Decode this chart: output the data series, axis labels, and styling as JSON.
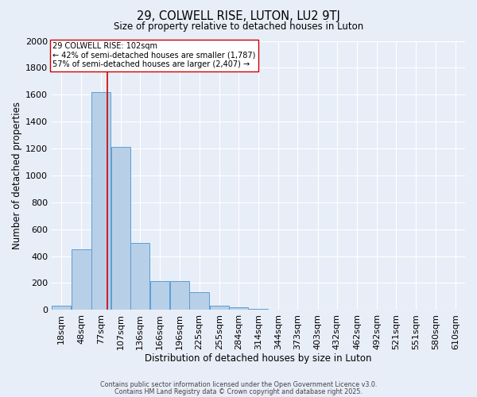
{
  "title1": "29, COLWELL RISE, LUTON, LU2 9TJ",
  "title2": "Size of property relative to detached houses in Luton",
  "xlabel": "Distribution of detached houses by size in Luton",
  "ylabel": "Number of detached properties",
  "bin_labels": [
    "18sqm",
    "48sqm",
    "77sqm",
    "107sqm",
    "136sqm",
    "166sqm",
    "196sqm",
    "225sqm",
    "255sqm",
    "284sqm",
    "314sqm",
    "344sqm",
    "373sqm",
    "403sqm",
    "432sqm",
    "462sqm",
    "492sqm",
    "521sqm",
    "551sqm",
    "580sqm",
    "610sqm"
  ],
  "bin_starts": [
    18,
    48,
    77,
    107,
    136,
    166,
    196,
    225,
    255,
    284,
    314,
    344,
    373,
    403,
    432,
    462,
    492,
    521,
    551,
    580,
    610
  ],
  "bin_width": 29,
  "bar_heights": [
    30,
    450,
    1620,
    1210,
    500,
    215,
    215,
    130,
    30,
    20,
    10,
    0,
    0,
    0,
    0,
    0,
    0,
    0,
    0,
    0,
    0
  ],
  "bar_color": "#b8cfe8",
  "bar_edge_color": "#5a9fd4",
  "bg_color": "#e8eef8",
  "grid_color": "#ffffff",
  "vline_x": 102,
  "vline_color": "#cc0000",
  "annotation_line1": "29 COLWELL RISE: 102sqm",
  "annotation_line2": "← 42% of semi-detached houses are smaller (1,787)",
  "annotation_line3": "57% of semi-detached houses are larger (2,407) →",
  "annotation_box_color": "#ffffff",
  "annotation_box_edge": "#cc0000",
  "ylim": [
    0,
    2000
  ],
  "yticks": [
    0,
    200,
    400,
    600,
    800,
    1000,
    1200,
    1400,
    1600,
    1800,
    2000
  ],
  "footer1": "Contains HM Land Registry data © Crown copyright and database right 2025.",
  "footer2": "Contains public sector information licensed under the Open Government Licence v3.0."
}
